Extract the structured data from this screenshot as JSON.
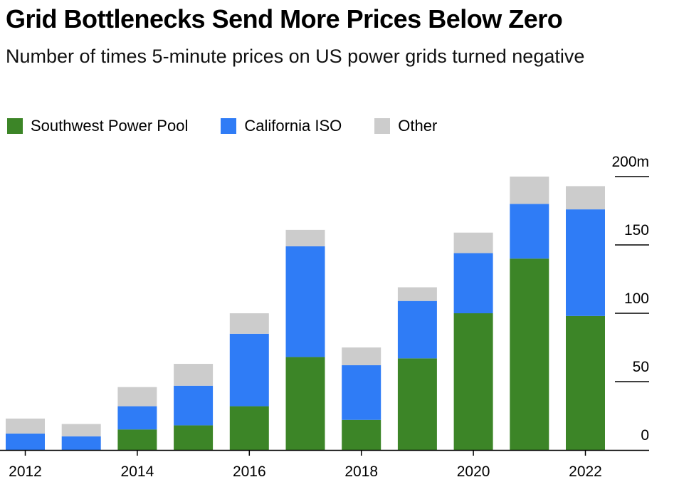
{
  "title": "Grid Bottlenecks Send More Prices Below Zero",
  "subtitle": "Number of times 5-minute prices on US power grids turned negative",
  "colors": {
    "southwest_power_pool": "#3c8527",
    "california_iso": "#2f7cf6",
    "other": "#cccccc",
    "axis": "#000000",
    "text": "#000000"
  },
  "chart_data": {
    "type": "bar",
    "stacked": true,
    "title": "Grid Bottlenecks Send More Prices Below Zero",
    "subtitle": "Number of times 5-minute prices on US power grids turned negative",
    "categories": [
      "2012",
      "2013",
      "2014",
      "2015",
      "2016",
      "2017",
      "2018",
      "2019",
      "2020",
      "2021",
      "2022"
    ],
    "x_tick_labels": [
      "2012",
      "",
      "2014",
      "",
      "2016",
      "",
      "2018",
      "",
      "2020",
      "",
      "2022"
    ],
    "series": [
      {
        "name": "Southwest Power Pool",
        "color": "#3c8527",
        "values": [
          0,
          0,
          15,
          18,
          32,
          68,
          22,
          67,
          100,
          140,
          98
        ]
      },
      {
        "name": "California ISO",
        "color": "#2f7cf6",
        "values": [
          12,
          10,
          17,
          29,
          53,
          81,
          40,
          42,
          44,
          40,
          78
        ]
      },
      {
        "name": "Other",
        "color": "#cccccc",
        "values": [
          11,
          9,
          14,
          16,
          15,
          12,
          13,
          10,
          15,
          20,
          17
        ]
      }
    ],
    "y_ticks": [
      0,
      50,
      100,
      150,
      200
    ],
    "y_tick_labels": [
      "0",
      "50",
      "100",
      "150",
      "200m"
    ],
    "ylim": [
      0,
      200
    ],
    "y_axis_position": "right",
    "legend_position": "top-left",
    "grid": false
  }
}
